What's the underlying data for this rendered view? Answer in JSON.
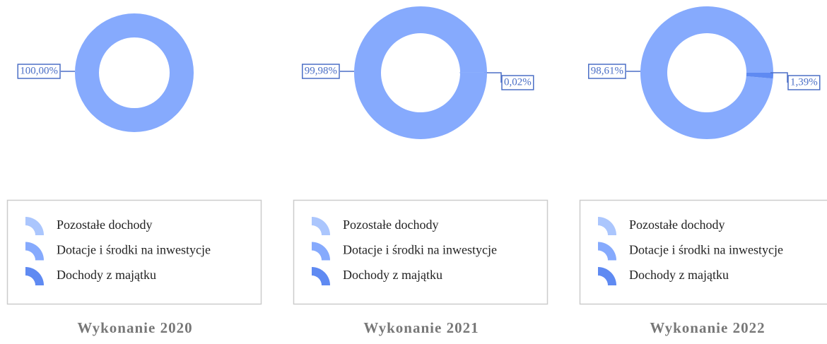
{
  "chart_data": [
    {
      "type": "pie",
      "title": "Wykonanie 2020",
      "categories": [
        "Pozostałe dochody",
        "Dotacje i środki na inwestycje",
        "Dochody z majątku"
      ],
      "values": [
        0,
        100,
        0
      ],
      "value_labels": [
        null,
        "100,00%",
        null
      ],
      "colors": [
        "#abc6fd",
        "#86aafd",
        "#5f8af2"
      ],
      "legend": "bottom"
    },
    {
      "type": "pie",
      "title": "Wykonanie 2021",
      "categories": [
        "Pozostałe dochody",
        "Dotacje i środki na inwestycje",
        "Dochody z majątku"
      ],
      "values": [
        0.02,
        99.98,
        0
      ],
      "value_labels": [
        "0,02%",
        "99,98%",
        null
      ],
      "colors": [
        "#abc6fd",
        "#86aafd",
        "#5f8af2"
      ],
      "legend": "bottom"
    },
    {
      "type": "pie",
      "title": "Wykonanie 2022",
      "categories": [
        "Pozostałe dochody",
        "Dotacje i środki na inwestycje",
        "Dochody z majątku"
      ],
      "values": [
        0,
        98.61,
        1.39
      ],
      "value_labels": [
        null,
        "98,61%",
        "1,39%"
      ],
      "colors": [
        "#abc6fd",
        "#86aafd",
        "#5f8af2"
      ],
      "legend": "bottom"
    }
  ]
}
